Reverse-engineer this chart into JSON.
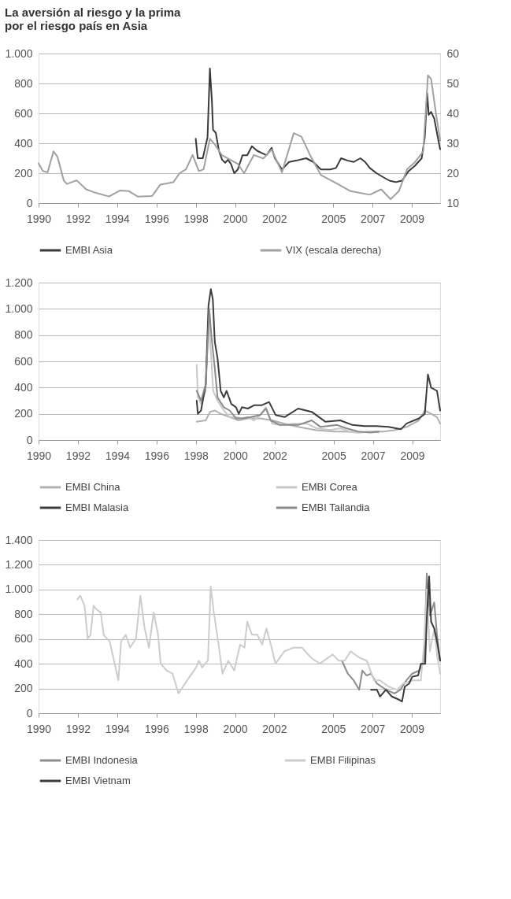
{
  "chart_data": [
    {
      "type": "line",
      "title": "La aversión al riesgo y la prima\npor el riesgo país en Asia",
      "xlim": [
        1990,
        2010.44
      ],
      "xticks": [
        1990,
        1992,
        1994,
        1996,
        1998,
        2000,
        2002,
        2005,
        2007,
        2009
      ],
      "ylim": [
        0,
        1000
      ],
      "yticks": [
        0,
        200,
        400,
        600,
        800,
        {
          "value": 1000,
          "label": "1.000"
        }
      ],
      "y2lim": [
        10,
        60
      ],
      "y2ticks": [
        10,
        20,
        30,
        40,
        50,
        60
      ],
      "grid": "y",
      "legend": "bottom",
      "series": [
        {
          "name": "EMBI Asia",
          "color": "#3a3a3a",
          "x": [
            1998.0,
            1998.1,
            1998.36,
            1998.6,
            1998.72,
            1998.82,
            1998.88,
            1999.02,
            1999.18,
            1999.34,
            1999.5,
            1999.64,
            1999.8,
            1999.96,
            2000.14,
            2000.38,
            2000.62,
            2000.86,
            2001.12,
            2001.36,
            2001.6,
            2001.86,
            2002.03,
            2002.39,
            2002.75,
            2003.14,
            2003.62,
            2003.98,
            2004.37,
            2004.85,
            2005.14,
            2005.4,
            2005.72,
            2006.04,
            2006.38,
            2006.62,
            2006.86,
            2007.2,
            2007.52,
            2007.86,
            2008.18,
            2008.5,
            2008.84,
            2009.16,
            2009.5,
            2009.66,
            2009.78,
            2009.86,
            2009.98,
            2010.14,
            2010.32,
            2010.44
          ],
          "values": [
            430,
            300,
            300,
            440,
            900,
            690,
            490,
            470,
            350,
            290,
            270,
            290,
            260,
            200,
            225,
            320,
            320,
            380,
            350,
            335,
            320,
            370,
            300,
            225,
            275,
            285,
            300,
            275,
            225,
            225,
            235,
            300,
            285,
            275,
            300,
            275,
            235,
            200,
            175,
            150,
            140,
            150,
            215,
            250,
            300,
            440,
            735,
            590,
            610,
            565,
            440,
            360
          ]
        },
        {
          "name": "VIX (escala derecha)",
          "color": "#a0a0a0",
          "axis": "y2",
          "x": [
            1990,
            1990.22,
            1990.46,
            1990.76,
            1990.96,
            1991.28,
            1991.44,
            1991.94,
            1992.42,
            1992.92,
            1993.58,
            1994.14,
            1994.6,
            1995.04,
            1995.78,
            1996.2,
            1996.86,
            1997.18,
            1997.5,
            1997.84,
            1998.16,
            1998.4,
            1998.72,
            1998.96,
            1999.32,
            1999.64,
            2000.14,
            2000.46,
            2000.96,
            2001.44,
            2001.86,
            2002.39,
            2002.99,
            2003.38,
            2003.86,
            2004.37,
            2005.22,
            2005.88,
            2006.86,
            2007.44,
            2007.92,
            2008.34,
            2008.76,
            2009.16,
            2009.58,
            2009.82,
            2009.98,
            2010.24,
            2010.44
          ],
          "values": [
            23.3,
            20.7,
            20.3,
            27.3,
            25.5,
            17.6,
            16.4,
            17.6,
            14.6,
            13.4,
            12.2,
            14.2,
            14.0,
            12.2,
            12.4,
            16.2,
            17.0,
            20.0,
            21.3,
            26.1,
            20.7,
            21.3,
            31.5,
            29.7,
            26.1,
            24.9,
            23.1,
            20.0,
            26.1,
            24.9,
            27.9,
            20.3,
            33.4,
            32.2,
            25.5,
            19.4,
            16.4,
            14.0,
            12.8,
            14.6,
            11.3,
            14.0,
            21.3,
            23.7,
            27.3,
            52.7,
            51.5,
            39.4,
            30.9
          ]
        }
      ]
    },
    {
      "type": "line",
      "xlim": [
        1990,
        2010.42
      ],
      "xticks": [
        1990,
        1992,
        1994,
        1996,
        1998,
        2000,
        2002,
        2005,
        2007,
        2009
      ],
      "ylim": [
        0,
        1200
      ],
      "yticks": [
        0,
        200,
        400,
        600,
        800,
        {
          "value": 1000,
          "label": "1.000"
        },
        {
          "value": 1200,
          "label": "1.200"
        }
      ],
      "grid": "y",
      "legend": "bottom",
      "series": [
        {
          "name": "EMBI China",
          "color": "#b0b0b0",
          "x": [
            1998.04,
            1998.5,
            1998.72,
            1998.96,
            1999.26,
            1999.72,
            2000.18,
            2000.64,
            2001.26,
            2001.88,
            2002.51,
            2003.2,
            2004.13,
            2005.04,
            2005.64,
            2006.26,
            2006.88,
            2007.5,
            2008.1,
            2008.72,
            2009.34,
            2009.64,
            2009.96,
            2010.26,
            2010.42
          ],
          "values": [
            140,
            150,
            215,
            225,
            200,
            175,
            150,
            165,
            165,
            150,
            125,
            100,
            75,
            65,
            65,
            57,
            65,
            65,
            75,
            100,
            150,
            225,
            200,
            175,
            125
          ]
        },
        {
          "name": "EMBI Corea",
          "color": "#c8c8c8",
          "x": [
            1998.04,
            1998.1,
            1998.26,
            1998.5,
            1998.64,
            1998.76,
            1998.88,
            1999.1,
            1999.42,
            1999.72,
            2000.04,
            2000.34,
            2000.64,
            2000.96,
            2001.26,
            2001.56,
            2001.88,
            2002.27,
            2002.96,
            2003.65,
            2004.13,
            2004.82,
            2005.34,
            2005.8,
            2006.26,
            2006.88,
            2007.3
          ],
          "values": [
            575,
            325,
            275,
            375,
            925,
            675,
            375,
            300,
            225,
            175,
            175,
            165,
            175,
            150,
            190,
            250,
            125,
            115,
            125,
            125,
            90,
            77,
            90,
            65,
            57,
            65,
            57
          ]
        },
        {
          "name": "EMBI Malasia",
          "color": "#3c3c3c",
          "x": [
            1998.04,
            1998.1,
            1998.26,
            1998.5,
            1998.64,
            1998.76,
            1998.86,
            1998.96,
            1999.1,
            1999.26,
            1999.42,
            1999.56,
            1999.8,
            2000.04,
            2000.18,
            2000.34,
            2000.64,
            2000.96,
            2001.34,
            2001.72,
            2002.06,
            2002.51,
            2003.2,
            2003.89,
            2004.58,
            2005.34,
            2005.96,
            2006.56,
            2007.18,
            2007.8,
            2008.42,
            2008.72,
            2009.34,
            2009.64,
            2009.8,
            2009.96,
            2010.26,
            2010.42
          ],
          "values": [
            300,
            200,
            225,
            425,
            1025,
            1150,
            1075,
            750,
            625,
            375,
            325,
            375,
            275,
            250,
            200,
            250,
            240,
            265,
            265,
            290,
            190,
            175,
            240,
            215,
            140,
            150,
            115,
            107,
            107,
            100,
            82,
            127,
            165,
            200,
            500,
            400,
            375,
            225
          ]
        },
        {
          "name": "EMBI Tailandia",
          "color": "#8a8a8a",
          "x": [
            1998.04,
            1998.26,
            1998.5,
            1998.68,
            1998.8,
            1998.96,
            1999.1,
            1999.42,
            1999.72,
            2000.04,
            2000.34,
            2000.8,
            2001.26,
            2001.56,
            2001.8,
            2002.27,
            2003.2,
            2003.89,
            2004.34,
            2005.18,
            2005.64,
            2006.26,
            2006.88,
            2007.3
          ],
          "values": [
            375,
            300,
            425,
            1000,
            775,
            550,
            325,
            250,
            225,
            165,
            165,
            175,
            190,
            240,
            150,
            115,
            115,
            150,
            100,
            115,
            90,
            65,
            57,
            65
          ]
        }
      ]
    },
    {
      "type": "line",
      "xlim": [
        1990,
        2010.44
      ],
      "xticks": [
        1990,
        1992,
        1994,
        1996,
        1998,
        2000,
        2002,
        2005,
        2007,
        2009
      ],
      "ylim": [
        0,
        1400
      ],
      "yticks": [
        0,
        200,
        400,
        600,
        800,
        {
          "value": 1000,
          "label": "1.000"
        },
        {
          "value": 1200,
          "label": "1.200"
        },
        {
          "value": 1400,
          "label": "1.400"
        }
      ],
      "grid": "y",
      "legend": "bottom",
      "series": [
        {
          "name": "EMBI Indonesia",
          "color": "#8c8c8c",
          "x": [
            2005.44,
            2005.74,
            2006.04,
            2006.32,
            2006.48,
            2006.7,
            2006.92,
            2007.22,
            2007.68,
            2008.12,
            2008.42,
            2008.72,
            2009.02,
            2009.38,
            2009.62,
            2009.76,
            2009.92,
            2010.14,
            2010.28,
            2010.44
          ],
          "values": [
            425,
            320,
            265,
            190,
            345,
            305,
            320,
            240,
            190,
            160,
            190,
            265,
            320,
            345,
            425,
            1130,
            790,
            895,
            635,
            425
          ]
        },
        {
          "name": "EMBI Filipinas",
          "color": "#cccccc",
          "x": [
            1991.98,
            1992.12,
            1992.34,
            1992.5,
            1992.64,
            1992.8,
            1992.94,
            1993.16,
            1993.32,
            1993.62,
            1993.84,
            1994.06,
            1994.2,
            1994.44,
            1994.66,
            1994.96,
            1995.18,
            1995.4,
            1995.62,
            1995.86,
            1996.08,
            1996.22,
            1996.52,
            1996.82,
            1997.12,
            1997.56,
            1998.02,
            1998.16,
            1998.32,
            1998.62,
            1998.76,
            1998.92,
            1999.14,
            1999.36,
            1999.66,
            1999.96,
            2000.26,
            2000.48,
            2000.62,
            2000.86,
            2001.14,
            2001.38,
            2001.6,
            2001.82,
            2002.06,
            2002.51,
            2002.96,
            2003.41,
            2003.86,
            2004.31,
            2004.97,
            2005.28,
            2005.58,
            2005.88,
            2006.32,
            2006.7,
            2007.08,
            2007.38,
            2007.82,
            2008.26,
            2008.56,
            2009.02,
            2009.46,
            2009.62,
            2009.76,
            2009.92,
            2010.14,
            2010.28,
            2010.44
          ],
          "values": [
            920,
            950,
            870,
            605,
            630,
            870,
            840,
            815,
            630,
            580,
            425,
            265,
            580,
            635,
            530,
            605,
            950,
            685,
            530,
            815,
            635,
            400,
            345,
            320,
            160,
            265,
            370,
            425,
            370,
            425,
            1025,
            815,
            580,
            320,
            425,
            345,
            555,
            530,
            740,
            635,
            635,
            555,
            685,
            555,
            400,
            500,
            530,
            530,
            450,
            400,
            475,
            425,
            425,
            500,
            450,
            425,
            265,
            265,
            215,
            190,
            240,
            265,
            265,
            555,
            1000,
            500,
            685,
            475,
            320
          ]
        },
        {
          "name": "EMBI Vietnam",
          "color": "#3a3a3a",
          "x": [
            2006.92,
            2007.22,
            2007.38,
            2007.68,
            2007.98,
            2008.34,
            2008.5,
            2008.64,
            2008.86,
            2009.02,
            2009.32,
            2009.46,
            2009.68,
            2009.76,
            2009.88,
            2009.98,
            2010.14,
            2010.28,
            2010.44
          ],
          "values": [
            190,
            190,
            135,
            190,
            135,
            110,
            95,
            215,
            240,
            295,
            305,
            400,
            400,
            765,
            1105,
            740,
            685,
            580,
            425
          ]
        }
      ]
    }
  ]
}
